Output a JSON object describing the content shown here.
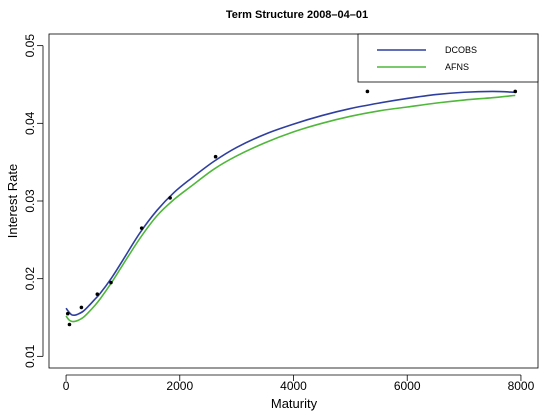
{
  "chart_data": {
    "type": "line",
    "title": "Term Structure 2008–04–01",
    "xlabel": "Maturity",
    "ylabel": "Interest Rate",
    "xlim": [
      -300,
      8300
    ],
    "ylim": [
      0.0085,
      0.0515
    ],
    "x_ticks": [
      0,
      2000,
      4000,
      6000,
      8000
    ],
    "x_tick_labels": [
      "0",
      "2000",
      "4000",
      "6000",
      "8000"
    ],
    "y_ticks": [
      0.01,
      0.02,
      0.03,
      0.04,
      0.05
    ],
    "y_tick_labels": [
      "0.01",
      "0.02",
      "0.03",
      "0.04",
      "0.05"
    ],
    "legend_position": "top-right",
    "series": [
      {
        "name": "DCOBS",
        "color": "#2f3fa0",
        "x": [
          0,
          50,
          100,
          150,
          200,
          300,
          400,
          500,
          600,
          800,
          1000,
          1300,
          1600,
          1900,
          2200,
          2600,
          3000,
          3500,
          4000,
          4500,
          5000,
          5500,
          6000,
          6500,
          7000,
          7500,
          7900
        ],
        "y": [
          0.0162,
          0.0157,
          0.01535,
          0.0153,
          0.0154,
          0.0158,
          0.0165,
          0.0173,
          0.0181,
          0.0201,
          0.0224,
          0.0259,
          0.0288,
          0.0311,
          0.0329,
          0.0351,
          0.0369,
          0.0386,
          0.0399,
          0.041,
          0.0419,
          0.0426,
          0.0432,
          0.0437,
          0.044,
          0.0441,
          0.044
        ]
      },
      {
        "name": "AFNS",
        "color": "#4fb83a",
        "x": [
          0,
          50,
          100,
          150,
          200,
          300,
          400,
          500,
          600,
          800,
          1000,
          1300,
          1600,
          1900,
          2200,
          2600,
          3000,
          3500,
          4000,
          4500,
          5000,
          5500,
          6000,
          6500,
          7000,
          7500,
          7900
        ],
        "y": [
          0.0152,
          0.0147,
          0.0145,
          0.0145,
          0.0146,
          0.015,
          0.0157,
          0.0165,
          0.0174,
          0.0195,
          0.0218,
          0.0252,
          0.0281,
          0.0302,
          0.0319,
          0.0341,
          0.0358,
          0.0375,
          0.0389,
          0.04,
          0.0409,
          0.0416,
          0.0421,
          0.0426,
          0.043,
          0.0433,
          0.0436
        ]
      }
    ],
    "points": {
      "x": [
        30,
        60,
        270,
        550,
        790,
        1330,
        1830,
        2630,
        5300,
        7900
      ],
      "y": [
        0.0155,
        0.0141,
        0.0163,
        0.018,
        0.0195,
        0.0265,
        0.0304,
        0.0357,
        0.0441,
        0.0441
      ]
    }
  }
}
